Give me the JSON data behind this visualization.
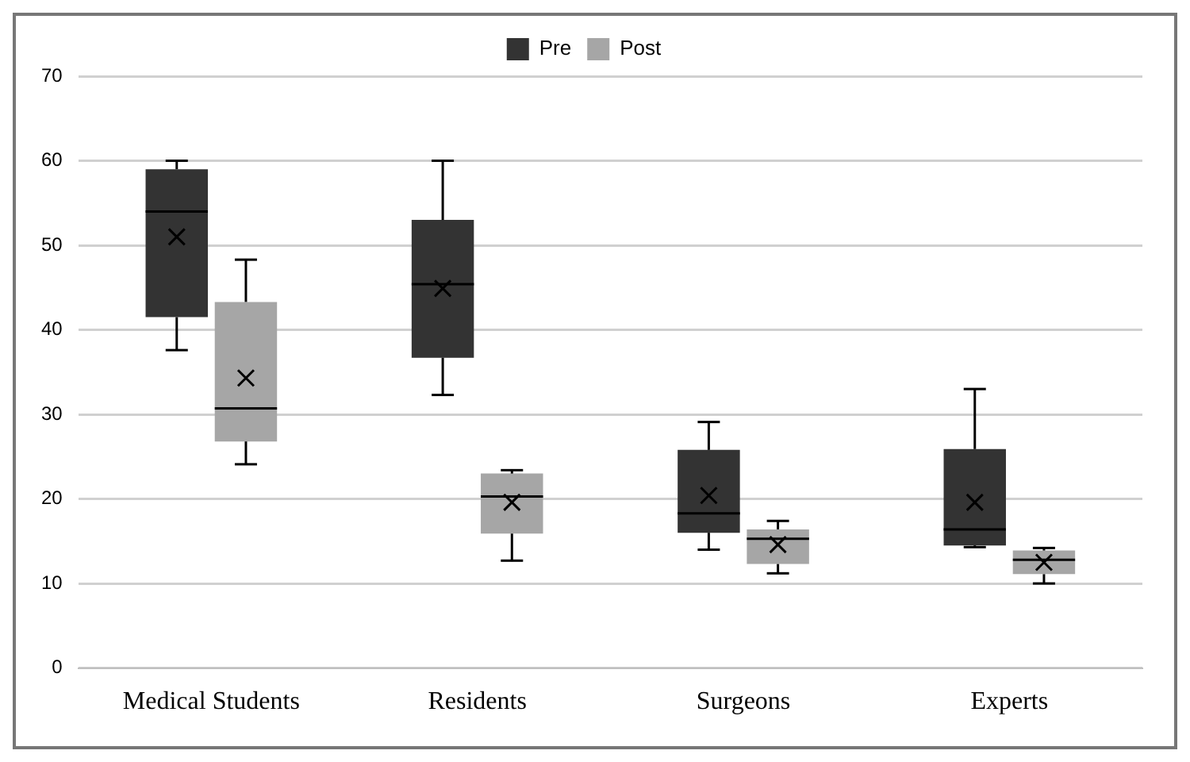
{
  "chart_data": {
    "type": "box",
    "categories": [
      "Medical Students",
      "Residents",
      "Surgeons",
      "Experts"
    ],
    "series": [
      {
        "name": "Pre",
        "color": "#333333",
        "boxes": [
          {
            "low": 37.6,
            "q1": 41.5,
            "median": 54.0,
            "q3": 59.0,
            "high": 60,
            "mean": 51.0
          },
          {
            "low": 32.3,
            "q1": 36.7,
            "median": 45.4,
            "q3": 53.0,
            "high": 60,
            "mean": 44.9
          },
          {
            "low": 14.0,
            "q1": 16.0,
            "median": 18.3,
            "q3": 25.8,
            "high": 29.1,
            "mean": 20.4
          },
          {
            "low": 14.3,
            "q1": 14.5,
            "median": 16.4,
            "q3": 25.9,
            "high": 33.0,
            "mean": 19.6
          }
        ]
      },
      {
        "name": "Post",
        "color": "#a6a6a6",
        "boxes": [
          {
            "low": 24.1,
            "q1": 26.8,
            "median": 30.7,
            "q3": 43.3,
            "high": 48.3,
            "mean": 34.3
          },
          {
            "low": 12.7,
            "q1": 15.9,
            "median": 20.3,
            "q3": 23.0,
            "high": 23.4,
            "mean": 19.6
          },
          {
            "low": 11.2,
            "q1": 12.3,
            "median": 15.3,
            "q3": 16.4,
            "high": 17.4,
            "mean": 14.6
          },
          {
            "low": 10.0,
            "q1": 11.1,
            "median": 12.8,
            "q3": 13.9,
            "high": 14.2,
            "mean": 12.5
          }
        ]
      }
    ],
    "ylim": [
      0,
      70
    ],
    "yticks": [
      0,
      10,
      20,
      30,
      40,
      50,
      60,
      70
    ],
    "grid": "y",
    "legend": "top",
    "marker": "cross"
  }
}
